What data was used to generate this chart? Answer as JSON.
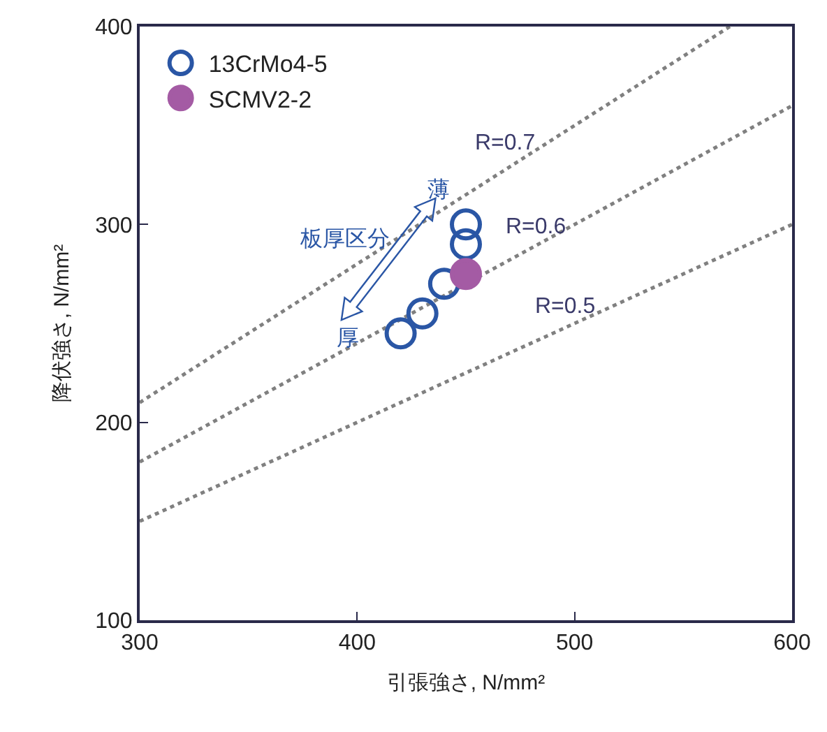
{
  "chart_data": {
    "type": "scatter",
    "xlabel": "引張強さ, N/mm²",
    "ylabel": "降伏強さ, N/mm²",
    "xlim": [
      300,
      600
    ],
    "xticks": [
      300,
      400,
      500,
      600
    ],
    "ylim": [
      100,
      400
    ],
    "yticks": [
      100,
      200,
      300,
      400
    ],
    "legend": "top left",
    "series": [
      {
        "type": "line",
        "color": "#808080",
        "line_style": "dotted",
        "marker": "none",
        "x": [
          300,
          571.4
        ],
        "values": [
          210,
          400
        ]
      },
      {
        "type": "line",
        "color": "#808080",
        "line_style": "dotted",
        "marker": "none",
        "x": [
          300,
          600
        ],
        "values": [
          180,
          360
        ]
      },
      {
        "type": "line",
        "color": "#808080",
        "line_style": "dotted",
        "marker": "none",
        "x": [
          300,
          600
        ],
        "values": [
          150,
          300
        ]
      },
      {
        "name": "13CrMo4-5",
        "color": "#2a56a5",
        "marker": "circle-open",
        "x": [
          420,
          430,
          440,
          450,
          450
        ],
        "values": [
          245,
          255,
          270,
          290,
          300
        ]
      },
      {
        "name": "SCMV2-2",
        "color": "#a45ba4",
        "marker": "circle",
        "x": [
          450
        ],
        "values": [
          275
        ]
      }
    ],
    "annotations": [
      "R=0.7",
      "R=0.6",
      "R=0.5",
      "板厚区分",
      "厚",
      "薄"
    ]
  }
}
